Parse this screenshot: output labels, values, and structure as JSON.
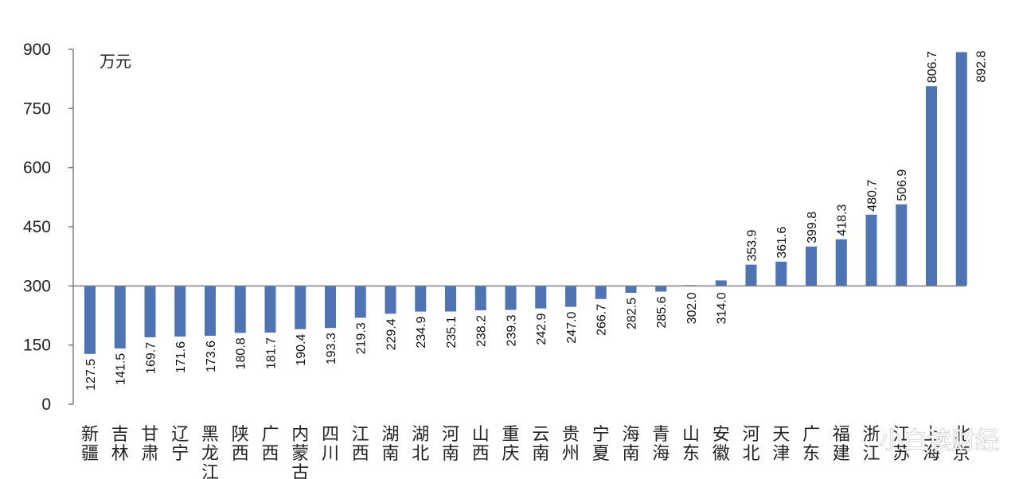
{
  "chart_data": {
    "type": "bar",
    "unit_label": "万元",
    "baseline": 300,
    "ylim": [
      0,
      900
    ],
    "yticks": [
      "0",
      "150",
      "300",
      "450",
      "600",
      "750",
      "900"
    ],
    "grid": false,
    "color": "#4f74b5",
    "categories": [
      "新疆",
      "吉林",
      "甘肃",
      "辽宁",
      "黑龙江",
      "陕西",
      "广西",
      "内蒙古",
      "四川",
      "江西",
      "湖南",
      "湖北",
      "河南",
      "山西",
      "重庆",
      "云南",
      "贵州",
      "宁夏",
      "海南",
      "青海",
      "山东",
      "安徽",
      "河北",
      "天津",
      "广东",
      "福建",
      "浙江",
      "江苏",
      "上海",
      "北京"
    ],
    "values": [
      127.5,
      141.5,
      169.7,
      171.6,
      173.6,
      180.8,
      181.7,
      190.4,
      193.3,
      219.3,
      229.4,
      234.9,
      235.1,
      238.2,
      239.3,
      242.9,
      247.0,
      266.7,
      282.5,
      285.6,
      302.0,
      314.0,
      353.9,
      361.6,
      399.8,
      418.3,
      480.7,
      506.9,
      806.7,
      892.8
    ],
    "value_labels": [
      "127.5",
      "141.5",
      "169.7",
      "171.6",
      "173.6",
      "180.8",
      "181.7",
      "190.4",
      "193.3",
      "219.3",
      "229.4",
      "234.9",
      "235.1",
      "238.2",
      "239.3",
      "242.9",
      "247.0",
      "266.7",
      "282.5",
      "285.6",
      "302.0",
      "314.0",
      "353.9",
      "361.6",
      "399.8",
      "418.3",
      "480.7",
      "506.9",
      "806.7",
      "892.8"
    ]
  },
  "watermark": "小白读财经"
}
